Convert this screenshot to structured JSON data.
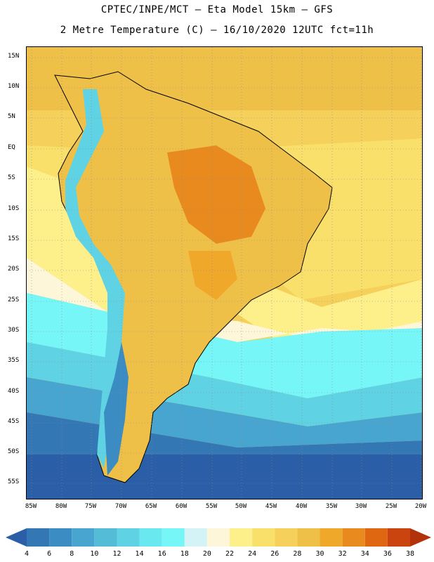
{
  "header": {
    "line1": "CPTEC/INPE/MCT –  Eta Model 15km – GFS",
    "line2": "2 Metre Temperature (C) – 16/10/2020 12UTC fct=11h"
  },
  "map": {
    "lat_labels": [
      "15N",
      "10N",
      "5N",
      "EQ",
      "5S",
      "10S",
      "15S",
      "20S",
      "25S",
      "30S",
      "35S",
      "40S",
      "45S",
      "50S",
      "55S"
    ],
    "lon_labels": [
      "85W",
      "80W",
      "75W",
      "70W",
      "65W",
      "60W",
      "55W",
      "50W",
      "45W",
      "40W",
      "35W",
      "30W",
      "25W",
      "20W"
    ]
  },
  "colorbar": {
    "levels": [
      "4",
      "6",
      "8",
      "10",
      "12",
      "14",
      "16",
      "18",
      "20",
      "22",
      "24",
      "26",
      "28",
      "30",
      "32",
      "34",
      "36",
      "38"
    ],
    "colors": [
      "#2a5fa8",
      "#3377b5",
      "#3a8cc2",
      "#47a5cf",
      "#55bcd8",
      "#5fd3e3",
      "#6ae8f0",
      "#76f6f6",
      "#d3f3f7",
      "#fdf6d8",
      "#fdf08a",
      "#f9e06a",
      "#f5d05a",
      "#efc047",
      "#f0a82a",
      "#e98a1e",
      "#df6712",
      "#c9440e",
      "#b2330a"
    ]
  }
}
